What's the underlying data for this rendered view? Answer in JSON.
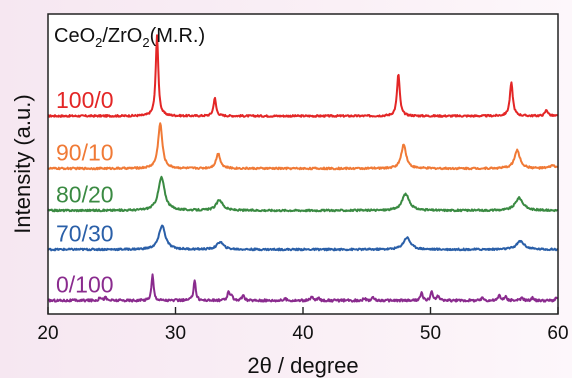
{
  "chart_data": {
    "type": "line",
    "title_parts": [
      "CeO",
      "2",
      "/ZrO",
      "2",
      "(M.R.)"
    ],
    "xlabel": "2θ / degree",
    "ylabel": "Intensity (a.u.)",
    "xlim": [
      20,
      60
    ],
    "xticks": [
      "20",
      "30",
      "40",
      "50",
      "60"
    ],
    "grid": false,
    "legend": "inline labels at left of each trace",
    "series": [
      {
        "name": "100/0",
        "color": "#e32626",
        "baseline": 0.66,
        "noise": 0.003,
        "peaks": [
          [
            28.55,
            0.27,
            0.12
          ],
          [
            33.08,
            0.06,
            0.12
          ],
          [
            47.48,
            0.14,
            0.13
          ],
          [
            56.34,
            0.11,
            0.14
          ],
          [
            59.1,
            0.02,
            0.14
          ]
        ]
      },
      {
        "name": "90/10",
        "color": "#f07a36",
        "baseline": 0.485,
        "noise": 0.003,
        "peaks": [
          [
            28.8,
            0.15,
            0.2
          ],
          [
            33.35,
            0.05,
            0.2
          ],
          [
            47.9,
            0.08,
            0.23
          ],
          [
            56.8,
            0.06,
            0.26
          ],
          [
            59.6,
            0.01,
            0.26
          ]
        ]
      },
      {
        "name": "80/20",
        "color": "#3a8a42",
        "baseline": 0.345,
        "noise": 0.003,
        "peaks": [
          [
            28.9,
            0.11,
            0.3
          ],
          [
            33.45,
            0.035,
            0.3
          ],
          [
            48.05,
            0.055,
            0.33
          ],
          [
            56.95,
            0.042,
            0.36
          ]
        ]
      },
      {
        "name": "70/30",
        "color": "#2a5fa8",
        "baseline": 0.215,
        "noise": 0.003,
        "peaks": [
          [
            28.95,
            0.08,
            0.3
          ],
          [
            33.5,
            0.025,
            0.3
          ],
          [
            48.15,
            0.04,
            0.33
          ],
          [
            57.05,
            0.028,
            0.36
          ]
        ]
      },
      {
        "name": "0/100",
        "color": "#8a2b8e",
        "baseline": 0.045,
        "noise": 0.004,
        "peaks": [
          [
            24.1,
            0.012,
            0.1
          ],
          [
            24.5,
            0.01,
            0.1
          ],
          [
            28.2,
            0.085,
            0.1
          ],
          [
            31.5,
            0.07,
            0.1
          ],
          [
            34.15,
            0.025,
            0.1
          ],
          [
            34.4,
            0.02,
            0.1
          ],
          [
            35.3,
            0.018,
            0.1
          ],
          [
            38.6,
            0.006,
            0.1
          ],
          [
            40.7,
            0.012,
            0.1
          ],
          [
            41.2,
            0.008,
            0.1
          ],
          [
            44.8,
            0.008,
            0.1
          ],
          [
            45.5,
            0.01,
            0.1
          ],
          [
            49.3,
            0.025,
            0.1
          ],
          [
            50.1,
            0.03,
            0.1
          ],
          [
            50.6,
            0.015,
            0.1
          ],
          [
            54.1,
            0.01,
            0.1
          ],
          [
            55.4,
            0.018,
            0.1
          ],
          [
            55.9,
            0.012,
            0.1
          ],
          [
            57.2,
            0.01,
            0.1
          ],
          [
            58.0,
            0.008,
            0.1
          ],
          [
            59.9,
            0.01,
            0.1
          ]
        ]
      }
    ]
  }
}
